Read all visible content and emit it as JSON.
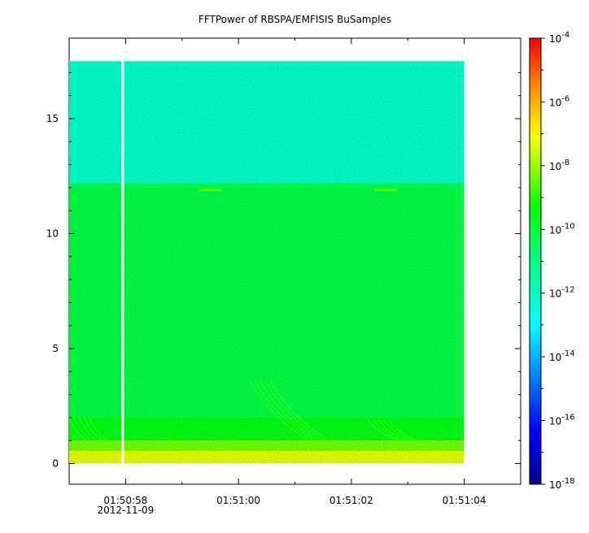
{
  "chart_data": {
    "type": "heatmap",
    "title": "FFTPower of RBSPA/EMFISIS  BuSamples",
    "xlabel": "",
    "ylabel": "",
    "x_ticks": [
      {
        "label": "01:50:58",
        "sub": "2012-11-09",
        "t": 58
      },
      {
        "label": "01:51:00",
        "sub": "",
        "t": 60
      },
      {
        "label": "01:51:02",
        "sub": "",
        "t": 62
      },
      {
        "label": "01:51:04",
        "sub": "",
        "t": 64
      }
    ],
    "x_range": [
      "01:50:57.0",
      "01:51:05.0"
    ],
    "x_data_range": [
      "01:50:57.0",
      "01:51:04.0"
    ],
    "y_ticks": [
      0,
      5,
      10,
      15
    ],
    "ylim": [
      -0.9,
      18.5
    ],
    "y_data_max": 17.5,
    "data_gap": "01:50:57.95",
    "colorbar": {
      "scale": "log",
      "range": [
        1e-18,
        0.0001
      ],
      "ticks": [
        {
          "base": "10",
          "exp": "-4",
          "v": -4
        },
        {
          "base": "10",
          "exp": "-6",
          "v": -6
        },
        {
          "base": "10",
          "exp": "-8",
          "v": -8
        },
        {
          "base": "10",
          "exp": "-10",
          "v": -10
        },
        {
          "base": "10",
          "exp": "-12",
          "v": -12
        },
        {
          "base": "10",
          "exp": "-14",
          "v": -14
        },
        {
          "base": "10",
          "exp": "-16",
          "v": -16
        },
        {
          "base": "10",
          "exp": "-18",
          "v": -18
        }
      ]
    },
    "bands": [
      {
        "y0": 12.2,
        "y1": 17.5,
        "log_power": -12.3
      },
      {
        "y0": 12.0,
        "y1": 12.2,
        "log_power": -10.5
      },
      {
        "y0": 2.0,
        "y1": 12.0,
        "log_power": -10.2
      },
      {
        "y0": 1.0,
        "y1": 2.0,
        "log_power": -9.6
      },
      {
        "y0": 0.55,
        "y1": 1.0,
        "log_power": -8.3
      },
      {
        "y0": 0.0,
        "y1": 0.55,
        "log_power": -7.2
      }
    ],
    "line_features": [
      {
        "t0": 59.3,
        "t1": 59.7,
        "y": 11.9,
        "log_power": -8.5
      },
      {
        "t0": 62.4,
        "t1": 62.8,
        "y": 11.9,
        "log_power": -8.5
      }
    ],
    "chorus_features": [
      {
        "t_start": 60.2,
        "t_end": 61.3,
        "y_top": 3.6,
        "y_bottom": 0.9
      },
      {
        "t_start": 62.3,
        "t_end": 63.0,
        "y_top": 1.9,
        "y_bottom": 0.9
      },
      {
        "t_start": 57.0,
        "t_end": 57.4,
        "y_top": 2.0,
        "y_bottom": 0.9
      }
    ]
  }
}
